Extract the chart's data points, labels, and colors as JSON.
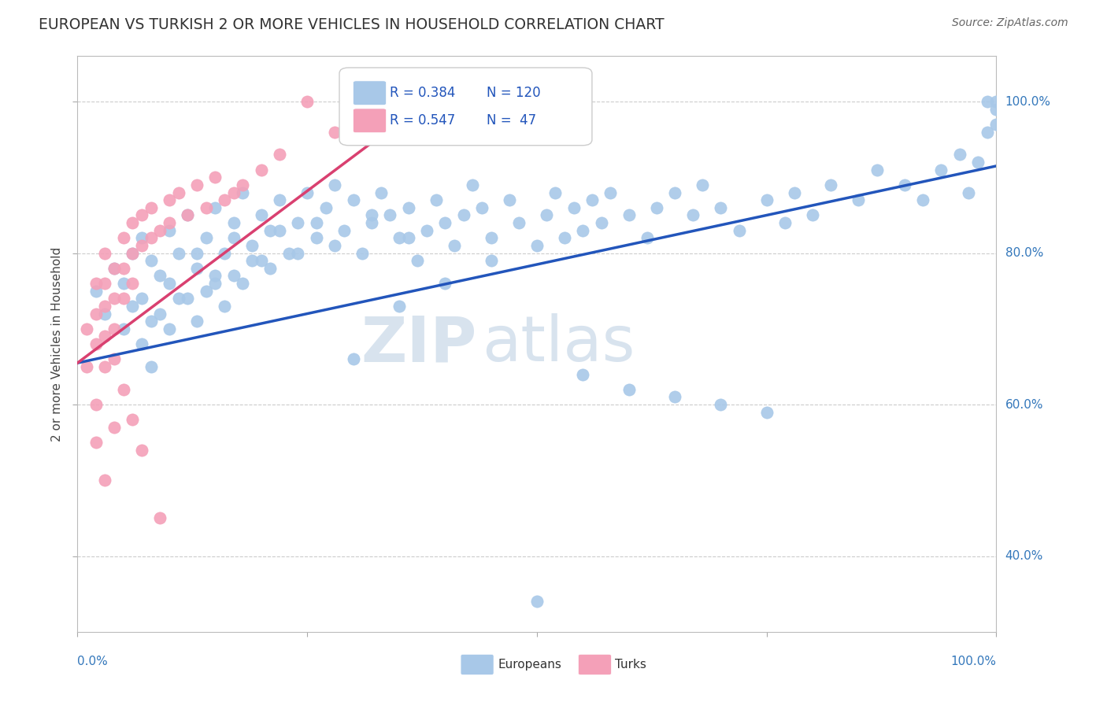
{
  "title": "EUROPEAN VS TURKISH 2 OR MORE VEHICLES IN HOUSEHOLD CORRELATION CHART",
  "source": "Source: ZipAtlas.com",
  "ylabel": "2 or more Vehicles in Household",
  "xlim": [
    0.0,
    1.0
  ],
  "ylim": [
    0.3,
    1.06
  ],
  "ytick_labels": [
    "40.0%",
    "60.0%",
    "80.0%",
    "100.0%"
  ],
  "ytick_values": [
    0.4,
    0.6,
    0.8,
    1.0
  ],
  "xtick_values": [
    0.0,
    0.25,
    0.5,
    0.75,
    1.0
  ],
  "blue_color": "#a8c8e8",
  "pink_color": "#f4a0b8",
  "line_blue": "#2255bb",
  "line_pink": "#d94070",
  "r_blue": 0.384,
  "n_blue": 120,
  "r_pink": 0.547,
  "n_pink": 47,
  "eu_line_x0": 0.0,
  "eu_line_x1": 1.0,
  "eu_line_y0": 0.655,
  "eu_line_y1": 0.915,
  "turk_line_x0": 0.0,
  "turk_line_x1": 0.38,
  "turk_line_y0": 0.655,
  "turk_line_y1": 1.0,
  "europeans_x": [
    0.02,
    0.03,
    0.04,
    0.05,
    0.05,
    0.06,
    0.06,
    0.07,
    0.07,
    0.08,
    0.08,
    0.09,
    0.1,
    0.1,
    0.11,
    0.12,
    0.12,
    0.13,
    0.14,
    0.15,
    0.15,
    0.16,
    0.17,
    0.17,
    0.18,
    0.19,
    0.2,
    0.2,
    0.21,
    0.22,
    0.23,
    0.24,
    0.25,
    0.26,
    0.27,
    0.28,
    0.29,
    0.3,
    0.31,
    0.32,
    0.33,
    0.34,
    0.35,
    0.36,
    0.37,
    0.38,
    0.39,
    0.4,
    0.41,
    0.42,
    0.43,
    0.44,
    0.45,
    0.47,
    0.48,
    0.5,
    0.51,
    0.52,
    0.53,
    0.54,
    0.55,
    0.56,
    0.57,
    0.58,
    0.6,
    0.62,
    0.63,
    0.65,
    0.67,
    0.68,
    0.7,
    0.72,
    0.75,
    0.77,
    0.78,
    0.8,
    0.82,
    0.85,
    0.87,
    0.9,
    0.92,
    0.94,
    0.96,
    0.97,
    0.98,
    0.99,
    0.99,
    1.0,
    1.0,
    1.0,
    0.07,
    0.08,
    0.09,
    0.1,
    0.11,
    0.13,
    0.14,
    0.16,
    0.18,
    0.21,
    0.13,
    0.15,
    0.17,
    0.19,
    0.22,
    0.24,
    0.26,
    0.28,
    0.32,
    0.36,
    0.5,
    0.35,
    0.4,
    0.45,
    0.3,
    0.55,
    0.6,
    0.65,
    0.7,
    0.75
  ],
  "europeans_y": [
    0.75,
    0.72,
    0.78,
    0.7,
    0.76,
    0.73,
    0.8,
    0.74,
    0.82,
    0.71,
    0.79,
    0.77,
    0.76,
    0.83,
    0.8,
    0.74,
    0.85,
    0.78,
    0.82,
    0.76,
    0.86,
    0.8,
    0.84,
    0.77,
    0.88,
    0.81,
    0.85,
    0.79,
    0.83,
    0.87,
    0.8,
    0.84,
    0.88,
    0.82,
    0.86,
    0.89,
    0.83,
    0.87,
    0.8,
    0.84,
    0.88,
    0.85,
    0.82,
    0.86,
    0.79,
    0.83,
    0.87,
    0.84,
    0.81,
    0.85,
    0.89,
    0.86,
    0.82,
    0.87,
    0.84,
    0.81,
    0.85,
    0.88,
    0.82,
    0.86,
    0.83,
    0.87,
    0.84,
    0.88,
    0.85,
    0.82,
    0.86,
    0.88,
    0.85,
    0.89,
    0.86,
    0.83,
    0.87,
    0.84,
    0.88,
    0.85,
    0.89,
    0.87,
    0.91,
    0.89,
    0.87,
    0.91,
    0.93,
    0.88,
    0.92,
    0.96,
    1.0,
    0.97,
    0.99,
    1.0,
    0.68,
    0.65,
    0.72,
    0.7,
    0.74,
    0.71,
    0.75,
    0.73,
    0.76,
    0.78,
    0.8,
    0.77,
    0.82,
    0.79,
    0.83,
    0.8,
    0.84,
    0.81,
    0.85,
    0.82,
    0.34,
    0.73,
    0.76,
    0.79,
    0.66,
    0.64,
    0.62,
    0.61,
    0.6,
    0.59
  ],
  "turks_x": [
    0.01,
    0.01,
    0.02,
    0.02,
    0.02,
    0.02,
    0.03,
    0.03,
    0.03,
    0.03,
    0.03,
    0.04,
    0.04,
    0.04,
    0.04,
    0.05,
    0.05,
    0.05,
    0.06,
    0.06,
    0.06,
    0.07,
    0.07,
    0.08,
    0.08,
    0.09,
    0.1,
    0.1,
    0.11,
    0.12,
    0.13,
    0.14,
    0.15,
    0.16,
    0.17,
    0.18,
    0.2,
    0.22,
    0.25,
    0.28,
    0.02,
    0.03,
    0.04,
    0.05,
    0.06,
    0.07,
    0.09
  ],
  "turks_y": [
    0.7,
    0.65,
    0.76,
    0.72,
    0.68,
    0.6,
    0.8,
    0.76,
    0.73,
    0.69,
    0.65,
    0.78,
    0.74,
    0.7,
    0.66,
    0.82,
    0.78,
    0.74,
    0.84,
    0.8,
    0.76,
    0.85,
    0.81,
    0.86,
    0.82,
    0.83,
    0.87,
    0.84,
    0.88,
    0.85,
    0.89,
    0.86,
    0.9,
    0.87,
    0.88,
    0.89,
    0.91,
    0.93,
    1.0,
    0.96,
    0.55,
    0.5,
    0.57,
    0.62,
    0.58,
    0.54,
    0.45
  ]
}
